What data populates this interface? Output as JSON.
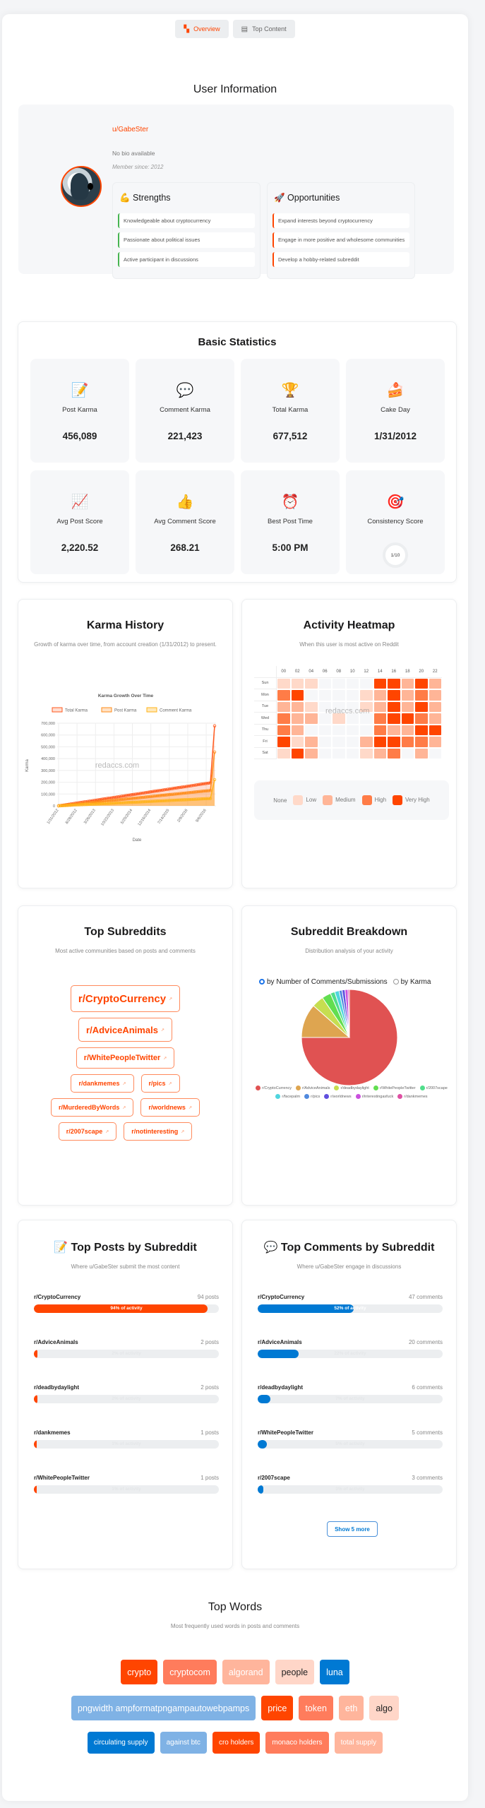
{
  "tabs": [
    {
      "label": "Overview",
      "icon": "dashboard-icon",
      "active": true
    },
    {
      "label": "Top Content",
      "icon": "document-icon",
      "active": false
    }
  ],
  "user_info": {
    "title": "User Information",
    "username": "u/GabeSter",
    "bio": "No bio available",
    "member_since": "Member since: 2012",
    "strengths": {
      "title": "💪 Strengths",
      "items": [
        "Knowledgeable about cryptocurrency",
        "Passionate about political issues",
        "Active participant in discussions"
      ]
    },
    "opportunities": {
      "title": "🚀 Opportunities",
      "items": [
        "Expand interests beyond cryptocurrency",
        "Engage in more positive and wholesome communities",
        "Develop a hobby-related subreddit"
      ]
    }
  },
  "basic_stats": {
    "title": "Basic Statistics",
    "items": [
      {
        "icon": "📝",
        "label": "Post Karma",
        "value": "456,089"
      },
      {
        "icon": "💬",
        "label": "Comment Karma",
        "value": "221,423"
      },
      {
        "icon": "🏆",
        "label": "Total Karma",
        "value": "677,512"
      },
      {
        "icon": "🍰",
        "label": "Cake Day",
        "value": "1/31/2012"
      },
      {
        "icon": "📈",
        "label": "Avg Post Score",
        "value": "2,220.52"
      },
      {
        "icon": "👍",
        "label": "Avg Comment Score",
        "value": "268.21"
      },
      {
        "icon": "⏰",
        "label": "Best Post Time",
        "value": "5:00 PM"
      },
      {
        "icon": "🎯",
        "label": "Consistency Score",
        "value": "1/10"
      }
    ]
  },
  "karma_history": {
    "title": "Karma History",
    "subtitle": "Growth of karma over time, from account creation (1/31/2012) to present.",
    "watermark": "redaccs.com"
  },
  "heatmap": {
    "title": "Activity Heatmap",
    "subtitle": "When this user is most active on Reddit",
    "watermark": "redaccs.com",
    "hours": [
      "00",
      "02",
      "04",
      "06",
      "08",
      "10",
      "12",
      "14",
      "16",
      "18",
      "20",
      "22"
    ],
    "days": [
      "Sun",
      "Mon",
      "Tue",
      "Wed",
      "Thu",
      "Fri",
      "Sat"
    ],
    "levels": [
      [
        1,
        1,
        1,
        0,
        0,
        0,
        0,
        4,
        4,
        2,
        4,
        2
      ],
      [
        3,
        4,
        0,
        0,
        0,
        0,
        1,
        2,
        4,
        2,
        3,
        2
      ],
      [
        2,
        2,
        1,
        0,
        0,
        0,
        1,
        2,
        4,
        2,
        4,
        2
      ],
      [
        3,
        2,
        2,
        0,
        1,
        0,
        0,
        3,
        4,
        4,
        3,
        2
      ],
      [
        3,
        2,
        0,
        0,
        0,
        0,
        0,
        3,
        2,
        2,
        4,
        4
      ],
      [
        4,
        1,
        2,
        0,
        0,
        0,
        2,
        4,
        4,
        3,
        3,
        2
      ],
      [
        1,
        4,
        2,
        0,
        0,
        0,
        1,
        2,
        3,
        0,
        2,
        0
      ]
    ],
    "legend": [
      "None",
      "Low",
      "Medium",
      "High",
      "Very High"
    ],
    "colors": [
      "#f6f7f9",
      "#ffd9c9",
      "#ffb597",
      "#ff7c47",
      "#ff4500"
    ]
  },
  "top_subreddits": {
    "title": "Top Subreddits",
    "subtitle": "Most active communities based on posts and comments",
    "rows": [
      [
        "r/CryptoCurrency"
      ],
      [
        "r/AdviceAnimals"
      ],
      [
        "r/WhitePeopleTwitter"
      ],
      [
        "r/dankmemes",
        "r/pics"
      ],
      [
        "r/MurderedByWords",
        "r/worldnews"
      ],
      [
        "r/2007scape",
        "r/notinteresting"
      ]
    ]
  },
  "subreddit_breakdown": {
    "title": "Subreddit Breakdown",
    "subtitle": "Distribution analysis of your activity",
    "options": [
      {
        "label": "by Number of Comments/Submissions",
        "selected": true
      },
      {
        "label": "by Karma",
        "selected": false
      }
    ]
  },
  "top_posts": {
    "title": "📝 Top Posts by Subreddit",
    "subtitle": "Where u/GabeSter submit the most content",
    "color": "#ff4500",
    "items": [
      {
        "name": "r/CryptoCurrency",
        "count": "94 posts",
        "pct": 94,
        "label": "94% of activity"
      },
      {
        "name": "r/AdviceAnimals",
        "count": "2 posts",
        "pct": 2,
        "label": "2% of activity"
      },
      {
        "name": "r/deadbydaylight",
        "count": "2 posts",
        "pct": 2,
        "label": "2% of activity"
      },
      {
        "name": "r/dankmemes",
        "count": "1 posts",
        "pct": 1,
        "label": "1% of activity"
      },
      {
        "name": "r/WhitePeopleTwitter",
        "count": "1 posts",
        "pct": 1,
        "label": "1% of activity"
      }
    ]
  },
  "top_comments": {
    "title": "💬 Top Comments by Subreddit",
    "subtitle": "Where u/GabeSter engage in discussions",
    "color": "#0079d3",
    "show_more": "Show 5 more",
    "items": [
      {
        "name": "r/CryptoCurrency",
        "count": "47 comments",
        "pct": 52,
        "label": "52% of activity"
      },
      {
        "name": "r/AdviceAnimals",
        "count": "20 comments",
        "pct": 22,
        "label": "22% of activity"
      },
      {
        "name": "r/deadbydaylight",
        "count": "6 comments",
        "pct": 7,
        "label": "7% of activity"
      },
      {
        "name": "r/WhitePeopleTwitter",
        "count": "5 comments",
        "pct": 5,
        "label": "5% of activity"
      },
      {
        "name": "r/2007scape",
        "count": "3 comments",
        "pct": 3,
        "label": "3% of activity"
      }
    ]
  },
  "top_words": {
    "title": "Top Words",
    "subtitle": "Most frequently used words in posts and comments",
    "rows": [
      [
        {
          "w": "crypto",
          "bg": "#ff4500",
          "fg": "#fff"
        },
        {
          "w": "cryptocom",
          "bg": "#ff7c5c",
          "fg": "#fff"
        },
        {
          "w": "algorand",
          "bg": "#ffb59c",
          "fg": "#fff"
        },
        {
          "w": "people",
          "bg": "#ffd6c8",
          "fg": "#222"
        },
        {
          "w": "luna",
          "bg": "#0079d3",
          "fg": "#fff"
        }
      ],
      [
        {
          "w": "pngwidth ampformatpngampautowebpamps",
          "bg": "#7fb2e5",
          "fg": "#fff"
        },
        {
          "w": "price",
          "bg": "#ff4500",
          "fg": "#fff"
        },
        {
          "w": "token",
          "bg": "#ff7c5c",
          "fg": "#fff"
        },
        {
          "w": "eth",
          "bg": "#ffb59c",
          "fg": "#fff"
        },
        {
          "w": "algo",
          "bg": "#ffd6c8",
          "fg": "#222"
        }
      ],
      [
        {
          "w": "circulating supply",
          "bg": "#0079d3",
          "fg": "#fff"
        },
        {
          "w": "against btc",
          "bg": "#7fb2e5",
          "fg": "#fff"
        },
        {
          "w": "cro holders",
          "bg": "#ff4500",
          "fg": "#fff"
        },
        {
          "w": "monaco holders",
          "bg": "#ff7c5c",
          "fg": "#fff"
        },
        {
          "w": "total supply",
          "bg": "#ffb59c",
          "fg": "#fff"
        }
      ]
    ]
  },
  "chart_data": [
    {
      "type": "line",
      "title": "Karma Growth Over Time",
      "xlabel": "Date",
      "ylabel": "Karma",
      "ylim": [
        0,
        700000
      ],
      "yticks": [
        0,
        100000,
        200000,
        300000,
        400000,
        500000,
        600000,
        700000
      ],
      "ytick_labels": [
        "0",
        "100,000",
        "200,000",
        "300,000",
        "400,000",
        "500,000",
        "600,000",
        "700,000"
      ],
      "xtick_labels": [
        "1/31/2012",
        "8/28/2012",
        "3/26/2013",
        "10/22/2013",
        "5/20/2014",
        "12/16/2014",
        "7/14/2015",
        "2/9/2016",
        "9/6/2016"
      ],
      "legend_position": "top",
      "grid": true,
      "x_points": 90,
      "series": [
        {
          "name": "Total Karma",
          "color": "#ff5a1f",
          "fill": "rgba(255,90,31,0.2)",
          "start": 0,
          "pre_end": 195000,
          "end": 677512
        },
        {
          "name": "Post Karma",
          "color": "#ff8c1a",
          "fill": "rgba(255,140,26,0.25)",
          "start": 0,
          "pre_end": 130000,
          "end": 456089
        },
        {
          "name": "Comment Karma",
          "color": "#ffb31a",
          "fill": "rgba(255,179,26,0.3)",
          "start": 0,
          "pre_end": 62000,
          "end": 221423
        }
      ]
    },
    {
      "type": "pie",
      "title": "Subreddit Breakdown",
      "legend_position": "bottom",
      "labels": [
        "r/CryptoCurrency",
        "r/AdviceAnimals",
        "r/deadbydaylight",
        "r/WhitePeopleTwitter",
        "r/2007scape",
        "r/facepalm",
        "r/pics",
        "r/worldnews",
        "r/interestingasfuck",
        "r/dankmemes"
      ],
      "values": [
        75,
        11.5,
        4,
        3,
        1.5,
        1.5,
        1,
        1,
        1,
        0.5
      ],
      "colors": [
        "#e05252",
        "#dea550",
        "#c6de50",
        "#62de50",
        "#50de8b",
        "#50d5de",
        "#5089de",
        "#6050de",
        "#ca50de",
        "#de50a3"
      ]
    }
  ]
}
